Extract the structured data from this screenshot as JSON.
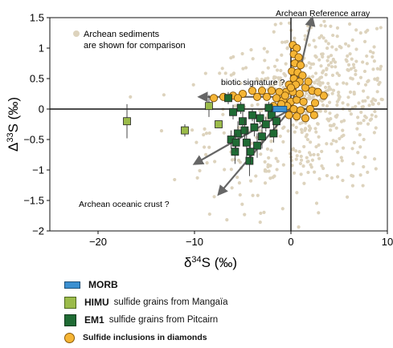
{
  "chart_data": {
    "type": "scatter",
    "title": "",
    "xlabel_prefix": "δ",
    "xlabel_sup": "34",
    "xlabel_suffix": "S (‰)",
    "ylabel_prefix": "Δ",
    "ylabel_sup": "33",
    "ylabel_suffix": "S (‰)",
    "xlim": [
      -25,
      10
    ],
    "ylim": [
      -2,
      1.5
    ],
    "x_ticks": [
      -20,
      -10,
      0,
      10
    ],
    "y_ticks": [
      -2,
      -1.5,
      -1,
      -0.5,
      0,
      0.5,
      1,
      1.5
    ],
    "x_tick_labels": [
      "−20",
      "−10",
      "0",
      "10"
    ],
    "y_tick_labels": [
      "−2",
      "−1.5",
      "−1",
      "−0.5",
      "0",
      "0.5",
      "1",
      "1.5"
    ],
    "grid": false,
    "annotations": {
      "sediments_line1": "Archean sediments",
      "sediments_line2": "are shown for comparison",
      "reference_array": "Archean Reference array",
      "biotic": "biotic signature ?",
      "oceanic_crust": "Archean oceanic crust  ?"
    },
    "colors": {
      "sediments": "#ddd3bd",
      "morb": "#3a8fd0",
      "himu": "#9bbb4a",
      "em1": "#1f6b34",
      "diamond": "#f5b535",
      "arrow": "#666666"
    },
    "arrows": [
      {
        "from": [
          0,
          0
        ],
        "to": [
          2.2,
          1.5
        ],
        "label": "Archean Reference array"
      },
      {
        "from": [
          -1.5,
          0.2
        ],
        "to": [
          -9.5,
          0.2
        ],
        "label": "biotic signature ?"
      },
      {
        "from": [
          0,
          0
        ],
        "to": [
          -10,
          -0.9
        ],
        "label": ""
      },
      {
        "from": [
          0,
          0
        ],
        "to": [
          -7.5,
          -1.4
        ],
        "label": "Archean oceanic crust  ?"
      }
    ],
    "series": [
      {
        "name": "MORB",
        "marker": "bar",
        "points": [
          [
            -1.1,
            0.0
          ]
        ]
      },
      {
        "name": "HIMU",
        "marker": "square",
        "points": [
          [
            -17,
            -0.2,
            0.28
          ],
          [
            -11,
            -0.35,
            0.1
          ],
          [
            -8.5,
            0.05,
            0.18
          ],
          [
            -7.5,
            -0.25,
            0
          ]
        ]
      },
      {
        "name": "EM1",
        "marker": "square",
        "points": [
          [
            -6.5,
            0.18,
            0.1
          ],
          [
            -6,
            -0.05,
            0.12
          ],
          [
            -6.2,
            -0.5,
            0.15
          ],
          [
            -5.8,
            -0.7,
            0.2
          ],
          [
            -5.5,
            -0.4,
            0.2
          ],
          [
            -5.2,
            0.02,
            0.1
          ],
          [
            -5,
            -0.2,
            0.15
          ],
          [
            -4.8,
            -0.35,
            0.2
          ],
          [
            -4.6,
            -0.55,
            0.25
          ],
          [
            -4.3,
            -0.85,
            0.25
          ],
          [
            -4.0,
            -0.1,
            0.1
          ],
          [
            -3.8,
            -0.3,
            0.15
          ],
          [
            -3.5,
            -0.6,
            0.2
          ],
          [
            -3.2,
            -0.15,
            0.1
          ],
          [
            -3.0,
            -0.45,
            0.2
          ],
          [
            -2.6,
            -0.25,
            0.12
          ],
          [
            -2.3,
            0.02,
            0.1
          ],
          [
            -2.0,
            -0.1,
            0.1
          ],
          [
            -1.8,
            -0.4,
            0.15
          ],
          [
            -1.5,
            -0.2,
            0.1
          ],
          [
            -4.2,
            -0.7,
            0.2
          ],
          [
            -5.7,
            -0.55,
            0.15
          ]
        ]
      },
      {
        "name": "Sulfide inclusions in diamonds",
        "marker": "circle",
        "points": [
          [
            0.2,
            1.05
          ],
          [
            0.6,
            1.0
          ],
          [
            0.3,
            0.9
          ],
          [
            0.8,
            0.85
          ],
          [
            0.4,
            0.75
          ],
          [
            1.0,
            0.72
          ],
          [
            0.1,
            0.62
          ],
          [
            0.7,
            0.6
          ],
          [
            1.2,
            0.55
          ],
          [
            0.3,
            0.5
          ],
          [
            0.9,
            0.45
          ],
          [
            -0.2,
            0.4
          ],
          [
            0.5,
            0.4
          ],
          [
            1.5,
            0.35
          ],
          [
            2.2,
            0.3
          ],
          [
            -0.5,
            0.28
          ],
          [
            0.2,
            0.28
          ],
          [
            -1.2,
            0.28
          ],
          [
            -2.0,
            0.3
          ],
          [
            -3.0,
            0.3
          ],
          [
            -4.0,
            0.3
          ],
          [
            -5.0,
            0.25
          ],
          [
            -6.0,
            0.22
          ],
          [
            -7.0,
            0.2
          ],
          [
            -8.0,
            0.18
          ],
          [
            -2.5,
            0.2
          ],
          [
            -1.5,
            0.18
          ],
          [
            -0.8,
            0.15
          ],
          [
            0.0,
            0.12
          ],
          [
            0.6,
            0.15
          ],
          [
            1.3,
            0.12
          ],
          [
            2.5,
            0.1
          ],
          [
            3.4,
            0.22
          ],
          [
            -0.4,
            0.05
          ],
          [
            0.3,
            0.0
          ],
          [
            1.0,
            -0.02
          ],
          [
            2.0,
            0.0
          ],
          [
            -0.2,
            -0.1
          ],
          [
            0.6,
            -0.12
          ],
          [
            1.5,
            -0.15
          ],
          [
            -1.0,
            0.08
          ],
          [
            -3.5,
            0.2
          ],
          [
            -5.5,
            0.18
          ],
          [
            0.0,
            0.35
          ],
          [
            1.8,
            0.45
          ],
          [
            2.8,
            0.28
          ],
          [
            -1.8,
            0.05
          ],
          [
            0.9,
            0.25
          ],
          [
            -0.6,
            0.22
          ],
          [
            2.4,
            -0.1
          ]
        ]
      },
      {
        "name": "Archean sediments",
        "marker": "dot",
        "n_points": 650
      }
    ]
  },
  "legend": [
    {
      "id": "morb",
      "name": "MORB",
      "desc": ""
    },
    {
      "id": "himu",
      "name": "HIMU",
      "desc": "sulfide grains from Mangaïa"
    },
    {
      "id": "em1",
      "name": "EM1",
      "desc": "sulfide grains from Pitcairn"
    },
    {
      "id": "diamond",
      "name": "Sulfide inclusions in diamonds",
      "desc": ""
    }
  ]
}
